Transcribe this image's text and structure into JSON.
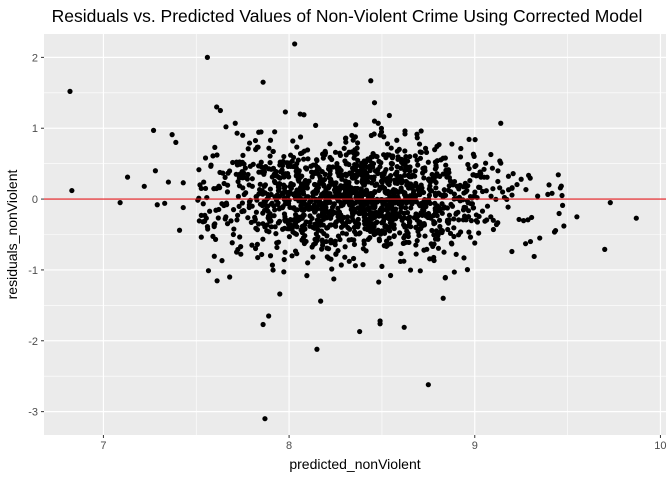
{
  "chart_data": {
    "type": "scatter",
    "title": "Residuals vs. Predicted Values of Non-Violent Crime Using Corrected Model",
    "xlabel": "predicted_nonViolent",
    "ylabel": "residuals_nonViolent",
    "xlim": [
      6.68,
      10.03
    ],
    "ylim": [
      -3.33,
      2.33
    ],
    "x_ticks": [
      7,
      8,
      9,
      10
    ],
    "x_tick_labels": [
      "7",
      "8",
      "9",
      "10"
    ],
    "y_ticks": [
      -3,
      -2,
      -1,
      0,
      1,
      2
    ],
    "y_tick_labels": [
      "-3",
      "-2",
      "-1",
      "0",
      "1",
      "2"
    ],
    "reference_line": {
      "y": 0,
      "color": "#e41a1c"
    },
    "grid": true,
    "legend": "none",
    "colors": {
      "panel": "#ebebeb",
      "grid": "#ffffff",
      "point": "#000000",
      "tick_text": "#4d4d4d"
    },
    "series": [
      {
        "x": [
          6.82,
          6.83,
          7.09,
          7.13,
          7.22,
          7.27,
          7.28,
          7.29,
          7.33,
          7.35,
          7.37,
          7.39,
          7.41,
          7.43,
          7.43,
          7.52,
          7.54,
          7.55,
          7.56,
          7.59,
          7.6,
          7.61,
          7.63,
          7.66,
          7.68,
          7.71,
          7.72,
          7.75,
          7.78,
          7.82,
          7.85,
          7.86,
          7.86,
          7.87,
          7.89,
          7.9,
          7.95,
          7.98,
          8.02,
          8.03,
          8.06,
          8.08,
          8.13,
          8.15,
          8.17,
          8.22,
          8.38,
          8.44,
          8.46,
          8.46,
          8.48,
          8.49,
          8.49,
          8.51,
          8.53,
          8.54,
          8.58,
          8.62,
          8.68,
          8.75,
          8.83,
          8.89,
          9.14,
          9.32,
          9.47,
          9.7,
          9.73,
          9.87,
          9.55,
          9.48,
          9.4,
          9.35,
          9.3,
          9.25,
          9.2,
          9.15,
          9.1,
          9.05,
          9.0,
          8.95,
          8.9,
          8.85,
          8.8,
          8.75,
          8.7,
          8.65,
          8.6,
          8.55,
          8.5,
          8.45,
          8.4,
          8.35,
          8.3,
          8.25,
          8.2,
          8.15,
          8.1,
          8.05,
          8.0,
          7.95,
          7.9,
          7.85,
          7.8,
          7.75,
          7.7,
          7.65,
          7.6,
          7.55
        ],
        "y": [
          1.52,
          0.12,
          -0.05,
          0.31,
          0.18,
          0.97,
          0.4,
          -0.08,
          -0.06,
          0.24,
          0.91,
          0.8,
          -0.44,
          0.23,
          -0.12,
          0.2,
          0.24,
          0.58,
          2.0,
          0.61,
          0.73,
          1.3,
          1.25,
          1.02,
          -1.1,
          1.07,
          0.93,
          0.9,
          0.71,
          0.7,
          0.52,
          1.65,
          -1.77,
          -3.1,
          -1.65,
          0.83,
          -1.34,
          1.23,
          0.82,
          2.19,
          1.2,
          1.19,
          0.48,
          -2.12,
          -1.44,
          0.78,
          -1.87,
          1.67,
          1.36,
          1.1,
          1.07,
          -1.76,
          -1.72,
          0.88,
          0.78,
          1.18,
          0.83,
          -1.81,
          0.61,
          -2.62,
          -1.4,
          -1.03,
          1.07,
          -0.81,
          0.05,
          -0.71,
          -0.05,
          -0.27,
          -0.25,
          -0.38,
          0.2,
          -0.55,
          -0.6,
          0.28,
          -0.74,
          0.1,
          -0.3,
          0.42,
          -0.62,
          0.18,
          -0.78,
          0.35,
          -0.48,
          0.52,
          -0.35,
          0.6,
          -0.88,
          0.72,
          -0.95,
          0.45,
          -0.7,
          0.58,
          -0.82,
          0.66,
          -0.6,
          0.4,
          -0.9,
          0.55,
          -0.42,
          0.48,
          -0.8,
          0.38,
          -0.65,
          0.3,
          -0.5,
          0.22,
          -0.35,
          0.15
        ]
      }
    ],
    "dense_cluster": {
      "x_range": [
        7.5,
        9.5
      ],
      "x_center": 8.35,
      "x_spread": 0.38,
      "y_spread": 0.37,
      "count": 1500
    }
  }
}
